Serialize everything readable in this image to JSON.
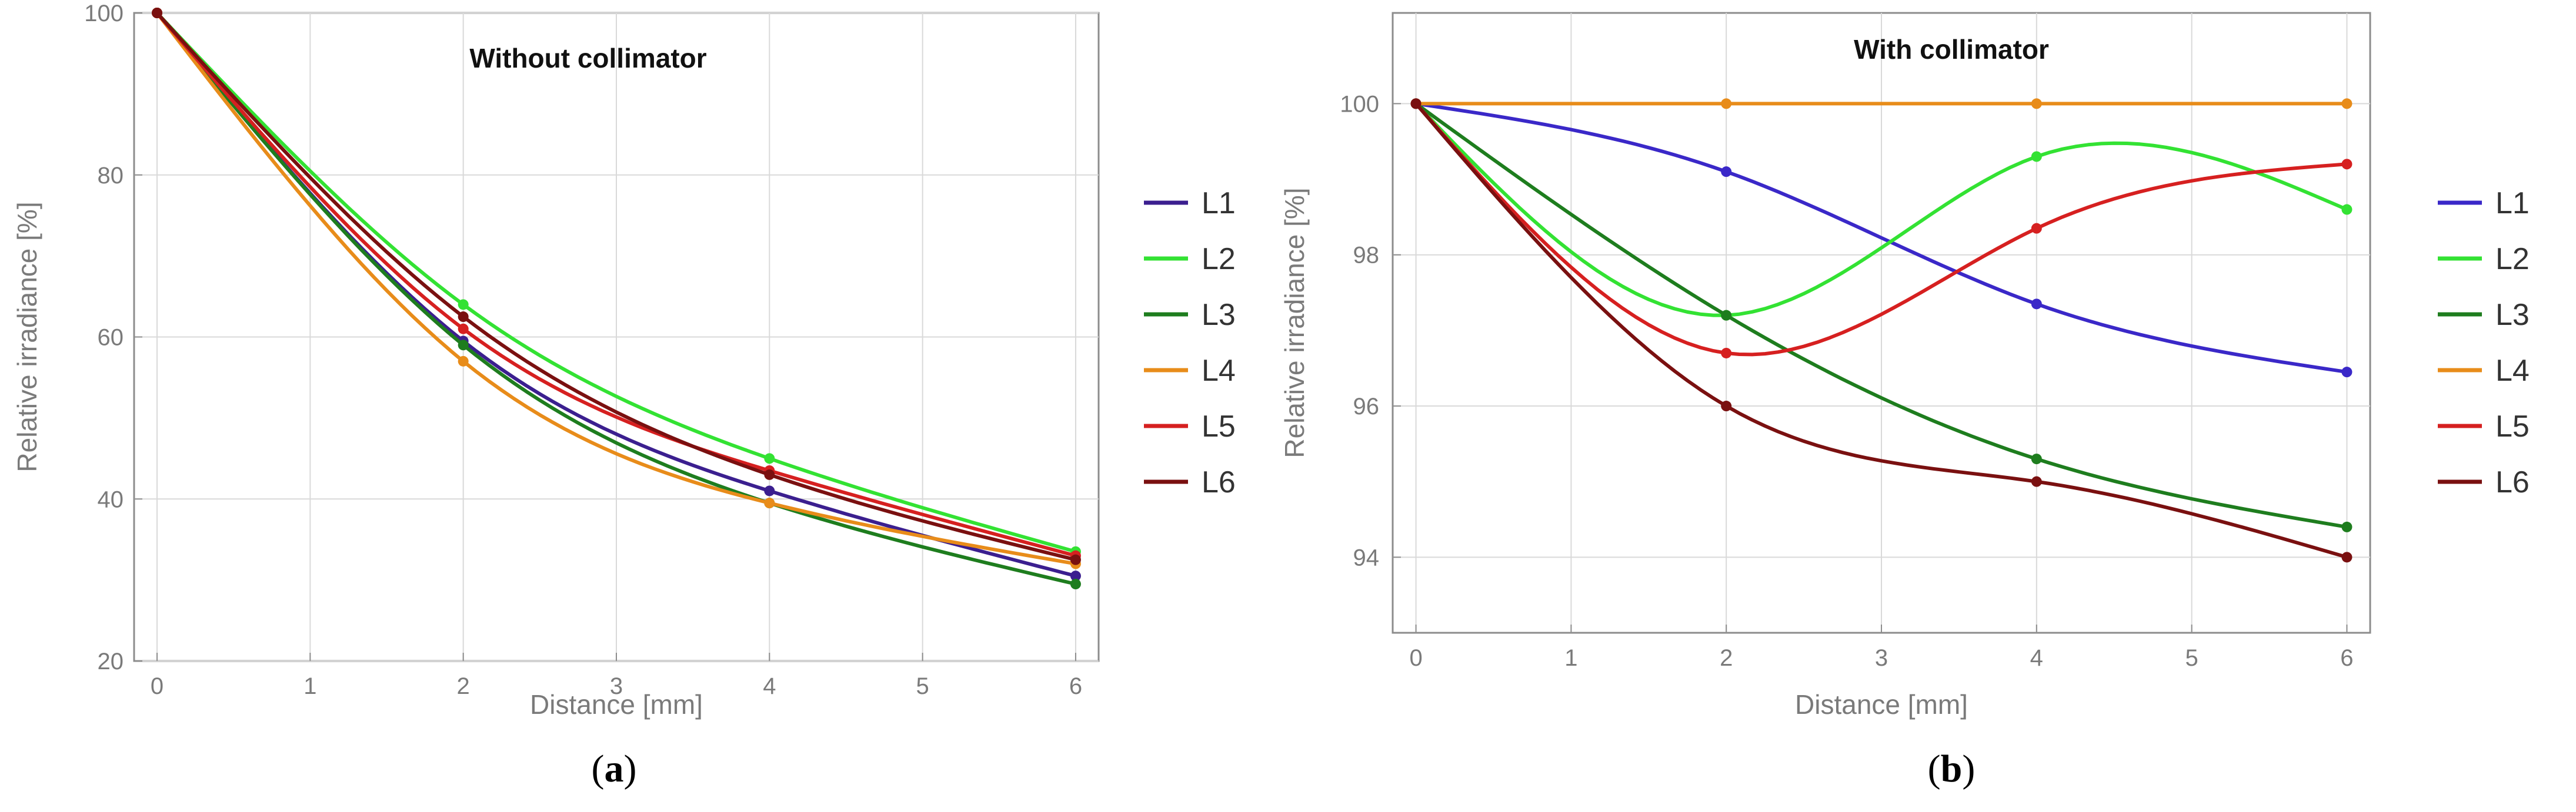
{
  "chart_data": [
    {
      "type": "line",
      "title": "Without collimator",
      "xlabel": "Distance [mm]",
      "ylabel": "Relative irradiance [%]",
      "caption_letter": "a",
      "x": [
        0,
        2,
        4,
        6
      ],
      "xlim": [
        -0.15,
        6.15
      ],
      "ylim": [
        20,
        100
      ],
      "xticks": [
        0,
        1,
        2,
        3,
        4,
        5,
        6
      ],
      "yticks": [
        20,
        40,
        60,
        80,
        100
      ],
      "grid": true,
      "legend_position": "right",
      "series": [
        {
          "name": "L1",
          "color": "#3b1f8f",
          "values": [
            100,
            59.5,
            41.0,
            30.5
          ]
        },
        {
          "name": "L2",
          "color": "#33e233",
          "values": [
            100,
            64.0,
            45.0,
            33.5
          ]
        },
        {
          "name": "L3",
          "color": "#1e7d1e",
          "values": [
            100,
            59.0,
            39.5,
            29.5
          ]
        },
        {
          "name": "L4",
          "color": "#e88c1a",
          "values": [
            100,
            57.0,
            39.5,
            32.0
          ]
        },
        {
          "name": "L5",
          "color": "#d62020",
          "values": [
            100,
            61.0,
            43.5,
            33.0
          ]
        },
        {
          "name": "L6",
          "color": "#7a1010",
          "values": [
            100,
            62.5,
            43.0,
            32.5
          ]
        }
      ]
    },
    {
      "type": "line",
      "title": "With collimator",
      "xlabel": "Distance [mm]",
      "ylabel": "Relative irradiance [%]",
      "caption_letter": "b",
      "x": [
        0,
        2,
        4,
        6
      ],
      "xlim": [
        -0.15,
        6.15
      ],
      "ylim": [
        93.0,
        101.2
      ],
      "xticks": [
        0,
        1,
        2,
        3,
        4,
        5,
        6
      ],
      "yticks": [
        94,
        96,
        98,
        100
      ],
      "grid": true,
      "legend_position": "right",
      "series": [
        {
          "name": "L1",
          "color": "#3a28c8",
          "values": [
            100,
            99.1,
            97.35,
            96.45
          ]
        },
        {
          "name": "L2",
          "color": "#33e233",
          "values": [
            100,
            97.2,
            99.3,
            98.6
          ]
        },
        {
          "name": "L3",
          "color": "#1e7d1e",
          "values": [
            100,
            97.2,
            95.3,
            94.4
          ]
        },
        {
          "name": "L4",
          "color": "#e88c1a",
          "values": [
            100,
            100,
            100,
            100
          ]
        },
        {
          "name": "L5",
          "color": "#d62020",
          "values": [
            100,
            96.7,
            98.35,
            99.2
          ]
        },
        {
          "name": "L6",
          "color": "#7a1010",
          "values": [
            100,
            96.0,
            95.0,
            94.0
          ]
        }
      ]
    }
  ]
}
